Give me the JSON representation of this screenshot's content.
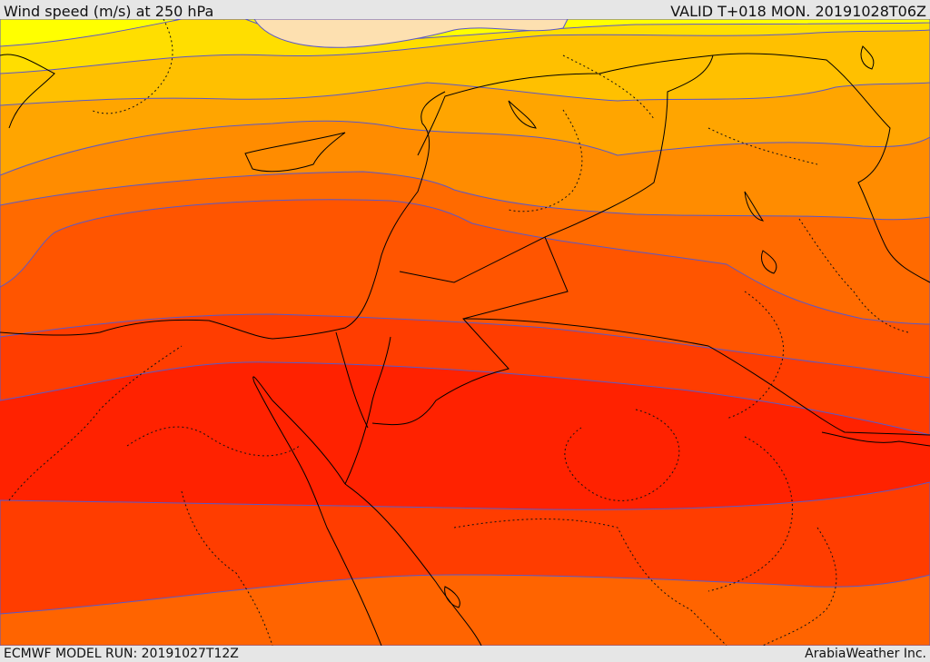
{
  "header": {
    "title": "Wind speed (m/s) at 250 hPa",
    "valid": "VALID T+018 MON. 20191028T06Z"
  },
  "footer": {
    "model_run": "ECMWF MODEL RUN: 20191027T12Z",
    "credit": "ArabiaWeather Inc."
  },
  "map": {
    "field": "wind-speed-250hPa",
    "palette": [
      "#fde0b0",
      "#ffff00",
      "#ffde00",
      "#ffc000",
      "#ffa500",
      "#ff8c00",
      "#ff6a00",
      "#ff4f00",
      "#ff3300",
      "#ff2200"
    ],
    "contour_color": "#5b58c8",
    "coastline_color": "#000000",
    "border_style": "dotted"
  }
}
